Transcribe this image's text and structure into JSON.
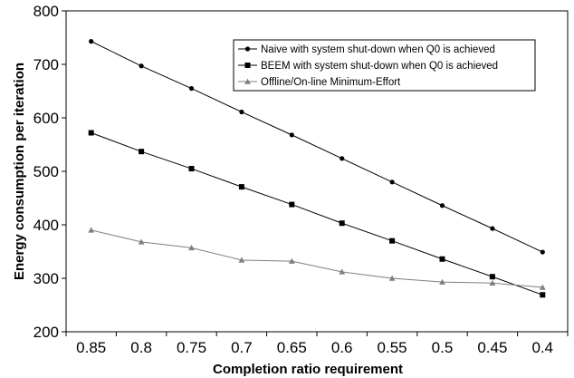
{
  "chart_data": {
    "type": "line",
    "title": "",
    "xlabel": "Completion ratio requirement",
    "ylabel": "Energy consumption per iteration",
    "categories": [
      "0.85",
      "0.8",
      "0.75",
      "0.7",
      "0.65",
      "0.6",
      "0.55",
      "0.5",
      "0.45",
      "0.4"
    ],
    "ylim": [
      200,
      800
    ],
    "yticks": [
      "200",
      "300",
      "400",
      "500",
      "600",
      "700",
      "800"
    ],
    "grid": false,
    "legend_position": "top-right",
    "series": [
      {
        "name": "Naive with system shut-down when Q0 is achieved",
        "marker": "circle",
        "color": "#000000",
        "values": [
          743,
          697,
          655,
          611,
          568,
          524,
          480,
          436,
          393,
          349
        ]
      },
      {
        "name": "BEEM with system shut-down when Q0 is achieved",
        "marker": "square",
        "color": "#000000",
        "values": [
          572,
          537,
          505,
          471,
          438,
          403,
          370,
          336,
          303,
          269
        ]
      },
      {
        "name": "Offline/On-line Minimum-Effort",
        "marker": "triangle",
        "color": "#7f7f7f",
        "values": [
          390,
          368,
          357,
          334,
          332,
          312,
          300,
          293,
          291,
          283
        ]
      }
    ]
  }
}
